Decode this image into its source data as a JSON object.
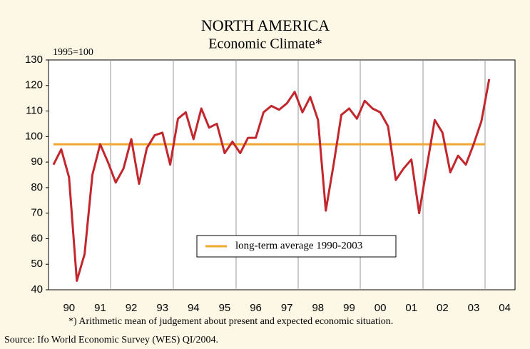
{
  "chart_data": {
    "type": "line",
    "title": "NORTH AMERICA",
    "subtitle": "Economic Climate*",
    "y_label": "1995=100",
    "footnote": "*) Arithmetic mean of judgement about present and expected economic situation.",
    "source": "Source: Ifo World Economic Survey (WES) QI/2004.",
    "x": [
      1990,
      1990.25,
      1990.5,
      1990.75,
      1991,
      1991.25,
      1991.5,
      1991.75,
      1992,
      1992.25,
      1992.5,
      1992.75,
      1993,
      1993.25,
      1993.5,
      1993.75,
      1994,
      1994.25,
      1994.5,
      1994.75,
      1995,
      1995.25,
      1995.5,
      1995.75,
      1996,
      1996.25,
      1996.5,
      1996.75,
      1997,
      1997.25,
      1997.5,
      1997.75,
      1998,
      1998.25,
      1998.5,
      1998.75,
      1999,
      1999.25,
      1999.5,
      1999.75,
      2000,
      2000.25,
      2000.5,
      2000.75,
      2001,
      2001.25,
      2001.5,
      2001.75,
      2002,
      2002.25,
      2002.5,
      2002.75,
      2003,
      2003.25,
      2003.5,
      2003.75,
      2004
    ],
    "series": [
      {
        "name": "Economic Climate",
        "color": "#c1272d",
        "values": [
          89,
          95,
          84,
          43.5,
          54,
          85,
          97,
          90,
          82,
          87.5,
          99,
          81.5,
          95.5,
          100.5,
          101.5,
          89,
          107,
          109.5,
          99,
          111,
          103.5,
          105,
          93.5,
          98,
          93.5,
          99.5,
          99.5,
          109.5,
          112,
          110.5,
          113,
          117.5,
          109.5,
          115.5,
          106.5,
          71,
          89,
          108.5,
          111,
          107,
          114,
          111,
          109.5,
          104,
          83,
          87.5,
          91,
          70,
          88.5,
          106.5,
          101.5,
          86,
          92.5,
          89,
          97,
          106,
          122.5
        ]
      }
    ],
    "average": {
      "label": "long-term average 1990-2003",
      "value": 97,
      "color": "#f0a830",
      "x": [
        1990,
        2003.875
      ]
    },
    "xlim": [
      1989.84,
      2004.83
    ],
    "xticks": [
      {
        "value": 1990.5,
        "label": "90"
      },
      {
        "value": 1991.5,
        "label": "91"
      },
      {
        "value": 1992.5,
        "label": "92"
      },
      {
        "value": 1993.5,
        "label": "93"
      },
      {
        "value": 1994.5,
        "label": "94"
      },
      {
        "value": 1995.5,
        "label": "95"
      },
      {
        "value": 1996.5,
        "label": "96"
      },
      {
        "value": 1997.5,
        "label": "97"
      },
      {
        "value": 1998.5,
        "label": "98"
      },
      {
        "value": 1999.5,
        "label": "99"
      },
      {
        "value": 2000.5,
        "label": "00"
      },
      {
        "value": 2001.5,
        "label": "01"
      },
      {
        "value": 2002.5,
        "label": "02"
      },
      {
        "value": 2003.5,
        "label": "03"
      },
      {
        "value": 2004.5,
        "label": "04"
      }
    ],
    "ylim": [
      40,
      130
    ],
    "yticks": [
      40,
      50,
      60,
      70,
      80,
      90,
      100,
      110,
      120,
      130
    ]
  }
}
